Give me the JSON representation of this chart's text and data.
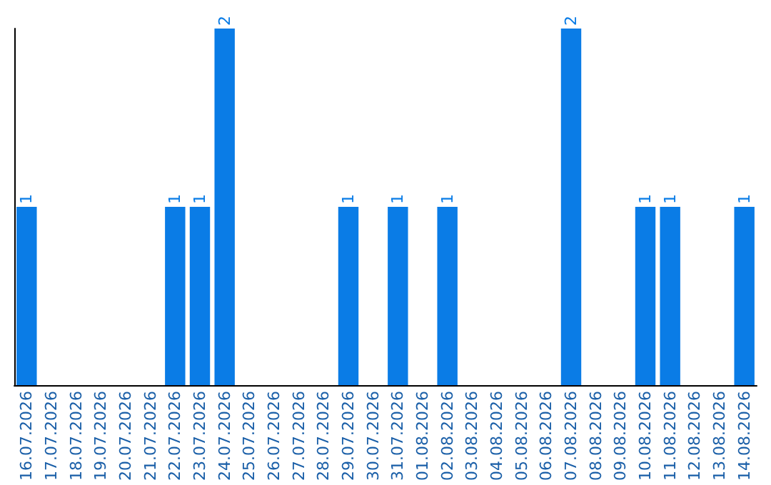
{
  "chart_data": {
    "type": "bar",
    "categories": [
      "16.07.2026",
      "17.07.2026",
      "18.07.2026",
      "19.07.2026",
      "20.07.2026",
      "21.07.2026",
      "22.07.2026",
      "23.07.2026",
      "24.07.2026",
      "25.07.2026",
      "26.07.2026",
      "27.07.2026",
      "28.07.2026",
      "29.07.2026",
      "30.07.2026",
      "31.07.2026",
      "01.08.2026",
      "02.08.2026",
      "03.08.2026",
      "04.08.2026",
      "05.08.2026",
      "06.08.2026",
      "07.08.2026",
      "08.08.2026",
      "09.08.2026",
      "10.08.2026",
      "11.08.2026",
      "12.08.2026",
      "13.08.2026",
      "14.08.2026"
    ],
    "values": [
      1,
      0,
      0,
      0,
      0,
      0,
      1,
      1,
      2,
      0,
      0,
      0,
      0,
      1,
      0,
      1,
      0,
      1,
      0,
      0,
      0,
      0,
      2,
      0,
      0,
      1,
      1,
      0,
      0,
      1
    ],
    "value_labels": [
      "1",
      null,
      null,
      null,
      null,
      null,
      "1",
      "1",
      "2",
      null,
      null,
      null,
      null,
      "1",
      null,
      "1",
      null,
      "1",
      null,
      null,
      null,
      null,
      "2",
      null,
      null,
      "1",
      "1",
      null,
      null,
      "1"
    ],
    "color": "#0a7ce6",
    "ylim": [
      0,
      2
    ],
    "grid": false,
    "tick_labels": "x"
  }
}
